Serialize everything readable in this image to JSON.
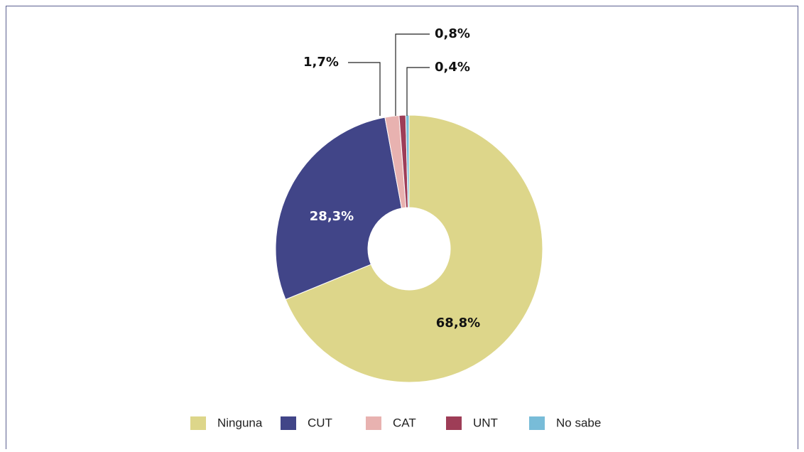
{
  "chart_data": {
    "type": "donut",
    "categories": [
      "Ninguna",
      "CUT",
      "CAT",
      "UNT",
      "No sabe"
    ],
    "values": [
      68.8,
      28.3,
      1.7,
      0.8,
      0.4
    ],
    "value_labels": [
      "68,8%",
      "28,3%",
      "1,7%",
      "0,8%",
      "0,4%"
    ],
    "colors": [
      "#ddd68a",
      "#414588",
      "#e8b2b0",
      "#9e3d57",
      "#78bcd8"
    ],
    "legend": "bottom"
  }
}
